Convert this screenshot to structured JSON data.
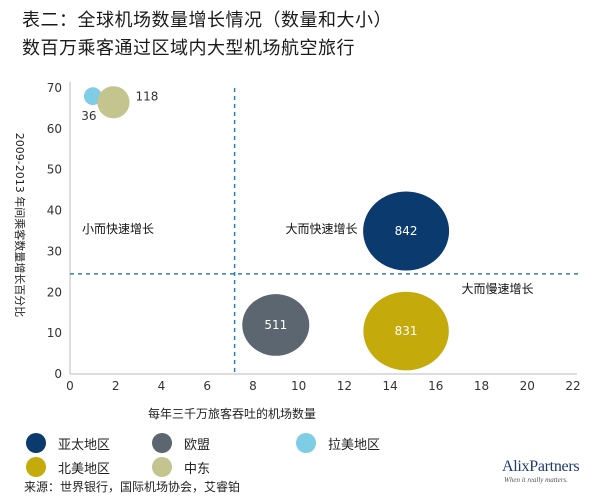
{
  "header": {
    "title_line1": "表二：全球机场数量增长情况（数量和大小）",
    "title_line2": "数百万乘客通过区域内大型机场航空旅行"
  },
  "chart_data": {
    "type": "bubble",
    "title": "表二：全球机场数量增长情况（数量和大小）",
    "subtitle": "数百万乘客通过区域内大型机场航空旅行",
    "xlabel": "每年三千万旅客吞吐的机场数量",
    "ylabel": "2009-2013 年间乘客数量增长百分比",
    "xlim": [
      0,
      22
    ],
    "ylim": [
      0,
      70
    ],
    "xticks": [
      0,
      2,
      4,
      6,
      8,
      10,
      12,
      14,
      16,
      18,
      20,
      22
    ],
    "yticks": [
      0,
      10,
      20,
      30,
      40,
      50,
      60,
      70
    ],
    "grid": false,
    "reference_lines": {
      "x": 7.2,
      "y": 24.5
    },
    "series": [
      {
        "name": "亚太地区",
        "x": 14.7,
        "y": 35,
        "size": 842,
        "color": "#0b3a6e",
        "label_color": "#ffffff"
      },
      {
        "name": "欧盟",
        "x": 9.0,
        "y": 12,
        "size": 511,
        "color": "#5b6670",
        "label_color": "#ffffff"
      },
      {
        "name": "拉美地区",
        "x": 1.0,
        "y": 68,
        "size": 36,
        "color": "#7ecde4",
        "label_color": "#333333"
      },
      {
        "name": "北美地区",
        "x": 14.7,
        "y": 10.5,
        "size": 831,
        "color": "#c4aa0a",
        "label_color": "#ffffff"
      },
      {
        "name": "中东",
        "x": 1.9,
        "y": 66.5,
        "size": 118,
        "color": "#c3c48e",
        "label_color": "#333333"
      }
    ],
    "annotations": [
      {
        "text": "小而快速增长",
        "x": 2.1,
        "y": 34.5
      },
      {
        "text": "大而快速增长",
        "x": 11.0,
        "y": 34.5
      },
      {
        "text": "大而慢速增长",
        "x": 18.7,
        "y": 19.8
      }
    ]
  },
  "legend": [
    {
      "label": "亚太地区",
      "color": "#0b3a6e"
    },
    {
      "label": "欧盟",
      "color": "#5b6670"
    },
    {
      "label": "拉美地区",
      "color": "#7ecde4"
    },
    {
      "label": "北美地区",
      "color": "#c4aa0a"
    },
    {
      "label": "中东",
      "color": "#c3c48e"
    }
  ],
  "footer": {
    "source": "来源：世界银行，国际机场协会，艾睿铂",
    "logo_text": "AlixPartners",
    "logo_tagline": "When it really matters."
  }
}
